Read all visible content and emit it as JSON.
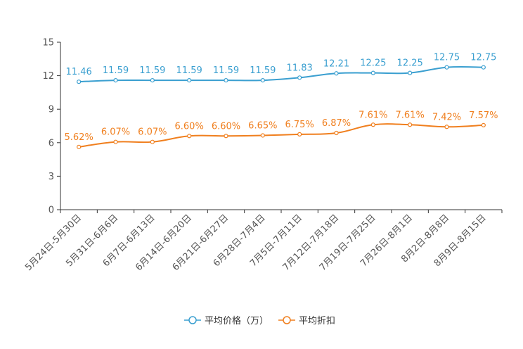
{
  "chart_data": {
    "type": "line",
    "title": "",
    "xlabel": "",
    "ylabel": "",
    "ylim": [
      0,
      15
    ],
    "yticks": [
      0,
      3,
      6,
      9,
      12,
      15
    ],
    "grid": false,
    "legend_position": "bottom-center",
    "categories": [
      "5月24日-5月30日",
      "5月31日-6月6日",
      "6月7日-6月13日",
      "6月14日-6月20日",
      "6月21日-6月27日",
      "6月28日-7月4日",
      "7月5日-7月11日",
      "7月12日-7月18日",
      "7月19日-7月25日",
      "7月26日-8月1日",
      "8月2日-8月8日",
      "8月9日-8月15日"
    ],
    "series": [
      {
        "name": "平均价格（万）",
        "color": "#3a9fd0",
        "values": [
          11.46,
          11.59,
          11.59,
          11.59,
          11.59,
          11.59,
          11.83,
          12.21,
          12.25,
          12.25,
          12.75,
          12.75
        ],
        "labels": [
          "11.46",
          "11.59",
          "11.59",
          "11.59",
          "11.59",
          "11.59",
          "11.83",
          "12.21",
          "12.25",
          "12.25",
          "12.75",
          "12.75"
        ]
      },
      {
        "name": "平均折扣",
        "color": "#f07f1e",
        "values": [
          5.62,
          6.07,
          6.07,
          6.6,
          6.6,
          6.65,
          6.75,
          6.87,
          7.61,
          7.61,
          7.42,
          7.57
        ],
        "labels": [
          "5.62%",
          "6.07%",
          "6.07%",
          "6.60%",
          "6.60%",
          "6.65%",
          "6.75%",
          "6.87%",
          "7.61%",
          "7.61%",
          "7.42%",
          "7.57%"
        ]
      }
    ]
  }
}
